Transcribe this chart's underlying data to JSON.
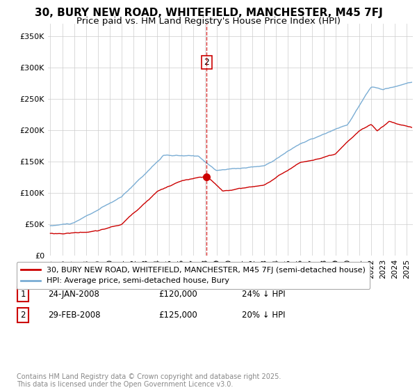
{
  "title": "30, BURY NEW ROAD, WHITEFIELD, MANCHESTER, M45 7FJ",
  "subtitle": "Price paid vs. HM Land Registry's House Price Index (HPI)",
  "ylabel_ticks": [
    "£0",
    "£50K",
    "£100K",
    "£150K",
    "£200K",
    "£250K",
    "£300K",
    "£350K"
  ],
  "ytick_values": [
    0,
    50000,
    100000,
    150000,
    200000,
    250000,
    300000,
    350000
  ],
  "ylim": [
    0,
    370000
  ],
  "xlim_start": 1994.8,
  "xlim_end": 2025.5,
  "red_line_color": "#cc0000",
  "blue_line_color": "#7aadd4",
  "vline_color": "#cc0000",
  "background_color": "#ffffff",
  "grid_color": "#cccccc",
  "legend_label_red": "30, BURY NEW ROAD, WHITEFIELD, MANCHESTER, M45 7FJ (semi-detached house)",
  "legend_label_blue": "HPI: Average price, semi-detached house, Bury",
  "table_rows": [
    [
      "1",
      "24-JAN-2008",
      "£120,000",
      "24% ↓ HPI"
    ],
    [
      "2",
      "29-FEB-2008",
      "£125,000",
      "20% ↓ HPI"
    ]
  ],
  "footer": "Contains HM Land Registry data © Crown copyright and database right 2025.\nThis data is licensed under the Open Government Licence v3.0.",
  "title_fontsize": 11,
  "subtitle_fontsize": 9.5,
  "tick_fontsize": 8,
  "legend_fontsize": 8,
  "table_fontsize": 8.5,
  "footer_fontsize": 7
}
